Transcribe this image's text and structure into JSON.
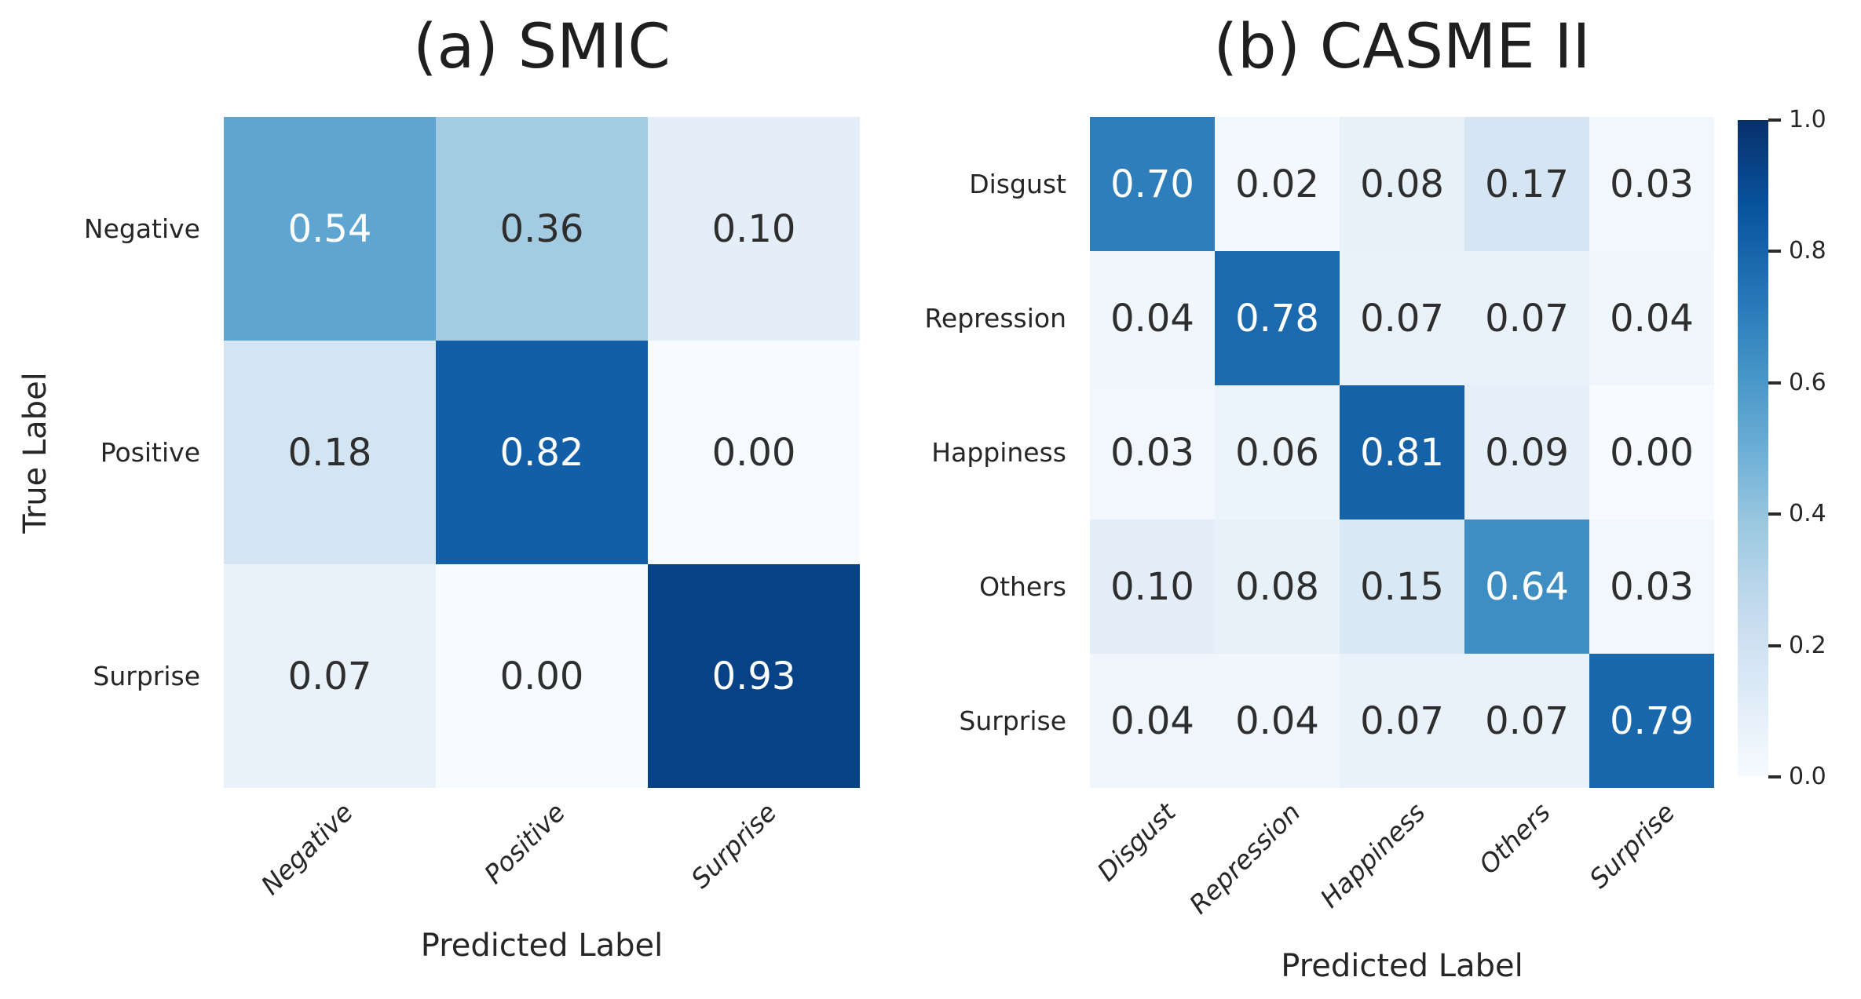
{
  "figure": {
    "background": "#ffffff",
    "text_color": "#262626",
    "title_color": "#1f1f1f",
    "annotation_dark_color": "#2e2e2e",
    "annotation_light_color": "#ffffff"
  },
  "colormap": {
    "name": "Blues",
    "stops": [
      "#f7fbff",
      "#deebf7",
      "#c6dbef",
      "#9ecae1",
      "#6baed6",
      "#4292c6",
      "#2171b5",
      "#08519c",
      "#08306b"
    ]
  },
  "colorbar": {
    "min": 0.0,
    "max": 1.0,
    "tick_labels": [
      "1.0",
      "0.8",
      "0.6",
      "0.4",
      "0.2",
      "0.0"
    ],
    "tick_values": [
      1.0,
      0.8,
      0.6,
      0.4,
      0.2,
      0.0
    ]
  },
  "chart_data": [
    {
      "type": "heatmap",
      "panel": "a",
      "title": "(a) SMIC",
      "xlabel": "Predicted Label",
      "ylabel": "True Label",
      "x_tick_labels": [
        "Negative",
        "Positive",
        "Surprise"
      ],
      "y_tick_labels": [
        "Negative",
        "Positive",
        "Surprise"
      ],
      "values": [
        [
          0.54,
          0.36,
          0.1
        ],
        [
          0.18,
          0.82,
          0.0
        ],
        [
          0.07,
          0.0,
          0.93
        ]
      ],
      "vmin": 0.0,
      "vmax": 1.0,
      "annotation_decimals": 2,
      "colormap": "Blues",
      "grid": false
    },
    {
      "type": "heatmap",
      "panel": "b",
      "title": "(b) CASME II",
      "xlabel": "Predicted Label",
      "ylabel": "",
      "x_tick_labels": [
        "Disgust",
        "Repression",
        "Happiness",
        "Others",
        "Surprise"
      ],
      "y_tick_labels": [
        "Disgust",
        "Repression",
        "Happiness",
        "Others",
        "Surprise"
      ],
      "values": [
        [
          0.7,
          0.02,
          0.08,
          0.17,
          0.03
        ],
        [
          0.04,
          0.78,
          0.07,
          0.07,
          0.04
        ],
        [
          0.03,
          0.06,
          0.81,
          0.09,
          0.0
        ],
        [
          0.1,
          0.08,
          0.15,
          0.64,
          0.03
        ],
        [
          0.04,
          0.04,
          0.07,
          0.07,
          0.79
        ]
      ],
      "vmin": 0.0,
      "vmax": 1.0,
      "annotation_decimals": 2,
      "colormap": "Blues",
      "grid": false
    }
  ]
}
